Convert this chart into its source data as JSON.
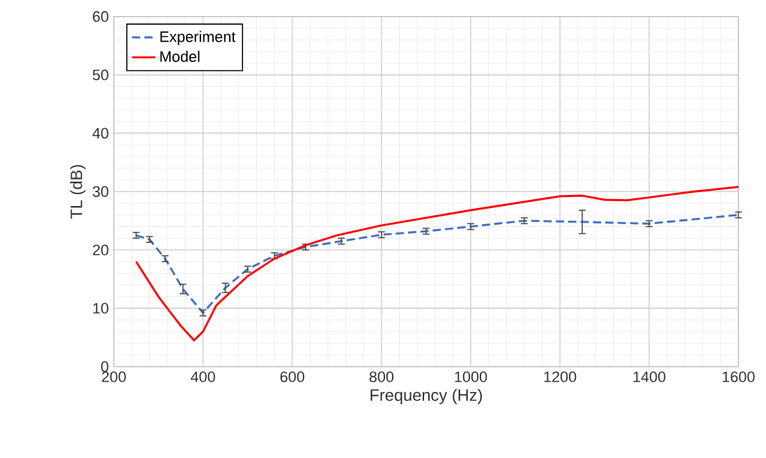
{
  "chart_data": {
    "type": "line",
    "xlabel": "Frequency (Hz)",
    "ylabel": "TL (dB)",
    "xlim": [
      200,
      1600
    ],
    "xticks": [
      200,
      400,
      600,
      800,
      1000,
      1200,
      1400,
      1600
    ],
    "ylim": [
      0,
      60
    ],
    "yticks": [
      0,
      10,
      20,
      30,
      40,
      50,
      60
    ],
    "grid": true,
    "legend": "top left",
    "series": [
      {
        "name": "Experiment",
        "color": "#4472c4",
        "line_style": "dashed",
        "x": [
          250,
          280,
          315,
          355,
          400,
          450,
          500,
          560,
          630,
          710,
          800,
          900,
          1000,
          1120,
          1250,
          1400,
          1600
        ],
        "values": [
          22.5,
          21.8,
          18.5,
          13.3,
          9.2,
          13.5,
          16.7,
          19.0,
          20.5,
          21.5,
          22.6,
          23.2,
          24.0,
          25.0,
          24.8,
          24.5,
          26.0
        ],
        "errors": [
          0.5,
          0.5,
          0.5,
          0.8,
          0.5,
          0.8,
          0.5,
          0.5,
          0.5,
          0.5,
          0.5,
          0.5,
          0.5,
          0.5,
          2.0,
          0.5,
          0.5
        ]
      },
      {
        "name": "Model",
        "color": "#ff0000",
        "line_style": "solid",
        "x": [
          250,
          300,
          350,
          380,
          400,
          430,
          500,
          560,
          630,
          700,
          800,
          900,
          1000,
          1100,
          1200,
          1250,
          1300,
          1350,
          1400,
          1500,
          1600
        ],
        "values": [
          18,
          12,
          7,
          4.5,
          6,
          10.5,
          15.5,
          18.5,
          20.8,
          22.5,
          24.2,
          25.5,
          26.8,
          28,
          29.2,
          29.3,
          28.6,
          28.5,
          29,
          30,
          30.8
        ]
      }
    ]
  }
}
